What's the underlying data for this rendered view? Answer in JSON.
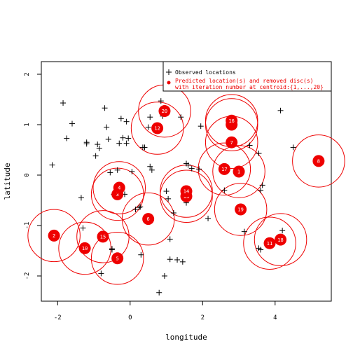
{
  "chart_data": {
    "type": "scatter",
    "xlabel": "longitude",
    "ylabel": "latitude",
    "xlim": [
      -2.45,
      5.55
    ],
    "ylim": [
      -2.5,
      2.25
    ],
    "xticks": [
      -2,
      0,
      2,
      4
    ],
    "yticks": [
      -2,
      -1,
      0,
      1,
      2
    ],
    "legend": {
      "position": "top-right",
      "observed_label": "Observed locations",
      "predicted_label_line1": "Predicted location(s) and removed disc(s)",
      "predicted_label_line2": "with iteration number at centroid:{1,...,20}"
    },
    "colors": {
      "observed": "#000000",
      "predicted": "#ee0000",
      "frame": "#000000"
    },
    "observed": [
      [
        -2.15,
        0.2
      ],
      [
        -1.85,
        1.43
      ],
      [
        -1.75,
        0.73
      ],
      [
        -1.6,
        1.02
      ],
      [
        -1.35,
        -0.45
      ],
      [
        -1.3,
        -1.05
      ],
      [
        -1.2,
        0.65
      ],
      [
        -1.2,
        0.62
      ],
      [
        -0.95,
        0.38
      ],
      [
        -0.9,
        0.61
      ],
      [
        -0.85,
        0.53
      ],
      [
        -0.8,
        -1.95
      ],
      [
        -0.7,
        1.33
      ],
      [
        -0.65,
        0.95
      ],
      [
        -0.6,
        0.71
      ],
      [
        -0.55,
        0.05
      ],
      [
        -0.5,
        -1.46
      ],
      [
        -0.5,
        -1.48
      ],
      [
        -0.45,
        -0.38
      ],
      [
        -0.35,
        0.1
      ],
      [
        -0.3,
        0.63
      ],
      [
        -0.25,
        1.12
      ],
      [
        -0.2,
        0.74
      ],
      [
        -0.15,
        -0.38
      ],
      [
        -0.1,
        0.63
      ],
      [
        -0.1,
        1.06
      ],
      [
        -0.05,
        0.73
      ],
      [
        0.05,
        0.07
      ],
      [
        0.15,
        -0.68
      ],
      [
        0.25,
        -0.64
      ],
      [
        0.28,
        -0.63
      ],
      [
        0.3,
        -1.58
      ],
      [
        0.35,
        0.55
      ],
      [
        0.4,
        0.55
      ],
      [
        0.5,
        0.95
      ],
      [
        0.55,
        1.15
      ],
      [
        0.55,
        0.17
      ],
      [
        0.6,
        0.1
      ],
      [
        0.8,
        -2.33
      ],
      [
        0.85,
        1.47
      ],
      [
        0.9,
        1.17
      ],
      [
        0.95,
        -2.0
      ],
      [
        1.0,
        -0.32
      ],
      [
        1.05,
        -0.47
      ],
      [
        1.1,
        -1.27
      ],
      [
        1.1,
        -1.67
      ],
      [
        1.2,
        -0.75
      ],
      [
        1.3,
        -1.68
      ],
      [
        1.4,
        1.15
      ],
      [
        1.45,
        -1.72
      ],
      [
        1.55,
        0.23
      ],
      [
        1.55,
        -0.55
      ],
      [
        1.6,
        0.2
      ],
      [
        1.7,
        0.13
      ],
      [
        1.9,
        0.12
      ],
      [
        1.95,
        0.97
      ],
      [
        2.15,
        -0.86
      ],
      [
        2.6,
        -0.3
      ],
      [
        3.15,
        -1.12
      ],
      [
        3.3,
        0.59
      ],
      [
        3.55,
        0.43
      ],
      [
        3.55,
        -1.45
      ],
      [
        3.6,
        -1.48
      ],
      [
        3.6,
        -0.3
      ],
      [
        3.65,
        -0.2
      ],
      [
        4.15,
        1.28
      ],
      [
        4.2,
        -1.1
      ],
      [
        4.5,
        0.55
      ]
    ],
    "predicted": [
      {
        "n": "1",
        "x": 3.0,
        "y": 0.07
      },
      {
        "n": "2",
        "x": -2.1,
        "y": -1.2
      },
      {
        "n": "3",
        "x": -0.35,
        "y": -0.38
      },
      {
        "n": "4",
        "x": -0.3,
        "y": -0.25
      },
      {
        "n": "5",
        "x": -0.35,
        "y": -1.65
      },
      {
        "n": "6",
        "x": 0.5,
        "y": -0.87
      },
      {
        "n": "7",
        "x": 2.8,
        "y": 0.65
      },
      {
        "n": "8",
        "x": 5.2,
        "y": 0.28
      },
      {
        "n": "9",
        "x": 2.8,
        "y": 1.0
      },
      {
        "n": "10",
        "x": -1.25,
        "y": -1.45
      },
      {
        "n": "11",
        "x": 3.85,
        "y": -1.35
      },
      {
        "n": "12",
        "x": 0.75,
        "y": 0.93
      },
      {
        "n": "13",
        "x": 1.55,
        "y": -0.42
      },
      {
        "n": "14",
        "x": 1.55,
        "y": -0.32
      },
      {
        "n": "15",
        "x": -0.75,
        "y": -1.22
      },
      {
        "n": "16",
        "x": 2.8,
        "y": 1.08
      },
      {
        "n": "17",
        "x": 2.6,
        "y": 0.12
      },
      {
        "n": "18",
        "x": 4.15,
        "y": -1.28
      },
      {
        "n": "19",
        "x": 3.05,
        "y": -0.68
      },
      {
        "n": "20",
        "x": 0.95,
        "y": 1.27
      }
    ],
    "disc_radius": 0.72
  }
}
